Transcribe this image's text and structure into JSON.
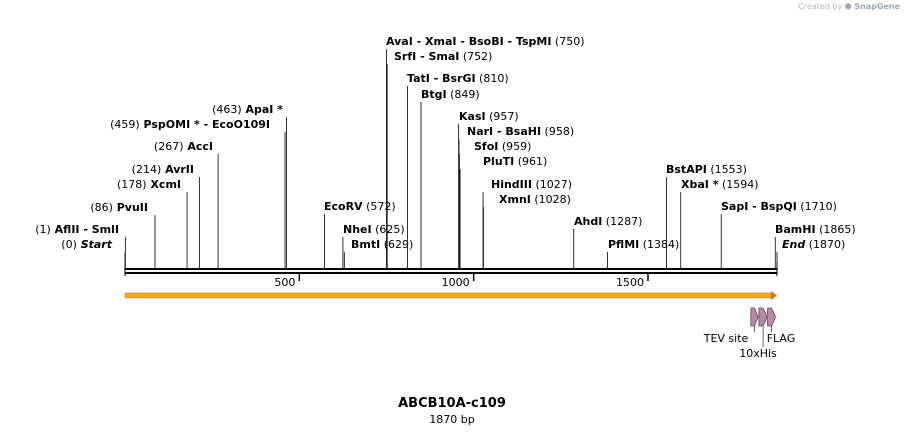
{
  "credit": {
    "prefix": "Created by",
    "brand": "SnapGene"
  },
  "title": "ABCB10A-c109",
  "subtitle": "1870 bp",
  "length": 1870,
  "ruler_ticks": [
    {
      "value": 500,
      "label": "500"
    },
    {
      "value": 1000,
      "label": "1000"
    },
    {
      "value": 1500,
      "label": "1500"
    }
  ],
  "sites": [
    {
      "pos": 0,
      "parts": [
        {
          "t": "(0)",
          "k": "num"
        },
        {
          "t": "Start",
          "k": "ital"
        }
      ]
    },
    {
      "pos": 1,
      "parts": [
        {
          "t": "(1)",
          "k": "num"
        },
        {
          "t": "AflII",
          "k": "enz"
        },
        {
          "t": "- SmlI",
          "k": "enz"
        }
      ]
    },
    {
      "pos": 86,
      "parts": [
        {
          "t": "(86)",
          "k": "num"
        },
        {
          "t": "PvuII",
          "k": "enz"
        }
      ]
    },
    {
      "pos": 178,
      "parts": [
        {
          "t": "(178)",
          "k": "num"
        },
        {
          "t": "XcmI",
          "k": "enz"
        }
      ]
    },
    {
      "pos": 214,
      "parts": [
        {
          "t": "(214)",
          "k": "num"
        },
        {
          "t": "AvrII",
          "k": "enz"
        }
      ]
    },
    {
      "pos": 267,
      "parts": [
        {
          "t": "(267)",
          "k": "num"
        },
        {
          "t": "AccI",
          "k": "enz"
        }
      ]
    },
    {
      "pos": 459,
      "parts": [
        {
          "t": "(459)",
          "k": "num"
        },
        {
          "t": "PspOMI *",
          "k": "enz"
        },
        {
          "t": "- EcoO109I",
          "k": "enz"
        }
      ]
    },
    {
      "pos": 463,
      "parts": [
        {
          "t": "(463)",
          "k": "num"
        },
        {
          "t": "ApaI *",
          "k": "enz"
        }
      ]
    },
    {
      "pos": 572,
      "parts": [
        {
          "t": "EcoRV",
          "k": "enz"
        },
        {
          "t": "(572)",
          "k": "num"
        }
      ]
    },
    {
      "pos": 625,
      "parts": [
        {
          "t": "NheI",
          "k": "enz"
        },
        {
          "t": "(625)",
          "k": "num"
        }
      ]
    },
    {
      "pos": 629,
      "parts": [
        {
          "t": "BmtI",
          "k": "enz"
        },
        {
          "t": "(629)",
          "k": "num"
        }
      ]
    },
    {
      "pos": 750,
      "parts": [
        {
          "t": "AvaI",
          "k": "enz"
        },
        {
          "t": "- XmaI",
          "k": "enz"
        },
        {
          "t": "- BsoBI",
          "k": "enz"
        },
        {
          "t": "- TspMI",
          "k": "enz"
        },
        {
          "t": "(750)",
          "k": "num"
        }
      ]
    },
    {
      "pos": 752,
      "parts": [
        {
          "t": "SrfI",
          "k": "enz"
        },
        {
          "t": "- SmaI",
          "k": "enz"
        },
        {
          "t": "(752)",
          "k": "num"
        }
      ]
    },
    {
      "pos": 810,
      "parts": [
        {
          "t": "TatI",
          "k": "enz"
        },
        {
          "t": "- BsrGI",
          "k": "enz"
        },
        {
          "t": "(810)",
          "k": "num"
        }
      ]
    },
    {
      "pos": 849,
      "parts": [
        {
          "t": "BtgI",
          "k": "enz"
        },
        {
          "t": "(849)",
          "k": "num"
        }
      ]
    },
    {
      "pos": 957,
      "parts": [
        {
          "t": "KasI",
          "k": "enz"
        },
        {
          "t": "(957)",
          "k": "num"
        }
      ]
    },
    {
      "pos": 958,
      "parts": [
        {
          "t": "NarI",
          "k": "enz"
        },
        {
          "t": "- BsaHI",
          "k": "enz"
        },
        {
          "t": "(958)",
          "k": "num"
        }
      ]
    },
    {
      "pos": 959,
      "parts": [
        {
          "t": "SfoI",
          "k": "enz"
        },
        {
          "t": "(959)",
          "k": "num"
        }
      ]
    },
    {
      "pos": 961,
      "parts": [
        {
          "t": "PluTI",
          "k": "enz"
        },
        {
          "t": "(961)",
          "k": "num"
        }
      ]
    },
    {
      "pos": 1027,
      "parts": [
        {
          "t": "HindIII",
          "k": "enz"
        },
        {
          "t": "(1027)",
          "k": "num"
        }
      ]
    },
    {
      "pos": 1028,
      "parts": [
        {
          "t": "XmnI",
          "k": "enz"
        },
        {
          "t": "(1028)",
          "k": "num"
        }
      ]
    },
    {
      "pos": 1287,
      "parts": [
        {
          "t": "AhdI",
          "k": "enz"
        },
        {
          "t": "(1287)",
          "k": "num"
        }
      ]
    },
    {
      "pos": 1384,
      "parts": [
        {
          "t": "PflMI",
          "k": "enz"
        },
        {
          "t": "(1384)",
          "k": "num"
        }
      ]
    },
    {
      "pos": 1553,
      "parts": [
        {
          "t": "BstAPI",
          "k": "enz"
        },
        {
          "t": "(1553)",
          "k": "num"
        }
      ]
    },
    {
      "pos": 1594,
      "parts": [
        {
          "t": "XbaI *",
          "k": "enz"
        },
        {
          "t": "(1594)",
          "k": "num"
        }
      ]
    },
    {
      "pos": 1710,
      "parts": [
        {
          "t": "SapI",
          "k": "enz"
        },
        {
          "t": "- BspQI",
          "k": "enz"
        },
        {
          "t": "(1710)",
          "k": "num"
        }
      ]
    },
    {
      "pos": 1865,
      "parts": [
        {
          "t": "BamHI",
          "k": "enz"
        },
        {
          "t": "(1865)",
          "k": "num"
        }
      ]
    },
    {
      "pos": 1870,
      "parts": [
        {
          "t": "End",
          "k": "ital"
        },
        {
          "t": "(1870)",
          "k": "num"
        }
      ]
    }
  ],
  "orf": {
    "start": 0,
    "end": 1870,
    "color": "#f5a623"
  },
  "features": [
    {
      "name": "TEV site",
      "start": 1795,
      "end": 1816,
      "color": "#b789a4"
    },
    {
      "name": "10xHis",
      "start": 1818,
      "end": 1842,
      "color": "#b789a4"
    },
    {
      "name": "FLAG",
      "start": 1843,
      "end": 1866,
      "color": "#b789a4"
    }
  ]
}
